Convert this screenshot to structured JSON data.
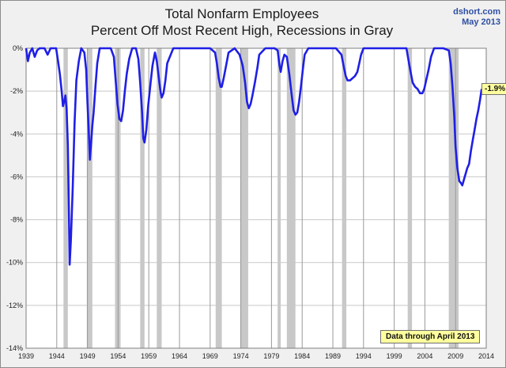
{
  "chart_data": {
    "type": "line",
    "title": "Total Nonfarm Employees",
    "subtitle": "Percent Off Most Recent High, Recessions in Gray",
    "source": "dshort.com",
    "date": "May 2013",
    "annotation": "Data through April 2013",
    "last_value_label": "-1.9%",
    "xlabel": "",
    "ylabel": "",
    "x_ticks": [
      "1939",
      "1944",
      "1949",
      "1954",
      "1959",
      "1964",
      "1969",
      "1974",
      "1979",
      "1984",
      "1989",
      "1994",
      "1999",
      "2004",
      "2009",
      "2014"
    ],
    "y_ticks": [
      "0%",
      "-2%",
      "-4%",
      "-6%",
      "-8%",
      "-10%",
      "-12%",
      "-14%"
    ],
    "xlim": [
      1939,
      2014
    ],
    "ylim": [
      -14,
      0
    ],
    "grid": true,
    "line_color": "#1f1fe6",
    "recession_color": "#c8c8c8",
    "recessions": [
      [
        1945.1,
        1945.8
      ],
      [
        1948.9,
        1949.8
      ],
      [
        1953.5,
        1954.4
      ],
      [
        1957.6,
        1958.3
      ],
      [
        1960.3,
        1961.1
      ],
      [
        1969.9,
        1970.9
      ],
      [
        1973.9,
        1975.2
      ],
      [
        1980.0,
        1980.5
      ],
      [
        1981.5,
        1982.9
      ],
      [
        1990.5,
        1991.2
      ],
      [
        2001.2,
        2001.9
      ],
      [
        2007.9,
        2009.5
      ]
    ],
    "series": [
      {
        "x": [
          1939.0,
          1939.3,
          1939.6,
          1940.0,
          1940.4,
          1940.8,
          1941.2,
          1942.0,
          1942.5,
          1943.0,
          1943.5,
          1943.9,
          1944.2,
          1944.5,
          1944.8,
          1945.0,
          1945.2,
          1945.4,
          1945.6,
          1945.8,
          1945.95,
          1946.1,
          1946.3,
          1946.6,
          1946.9,
          1947.2,
          1947.6,
          1948.0,
          1948.5,
          1948.8,
          1949.0,
          1949.2,
          1949.4,
          1949.6,
          1949.8,
          1950.0,
          1950.3,
          1950.6,
          1951.0,
          1951.6,
          1952.2,
          1952.8,
          1953.3,
          1953.6,
          1953.9,
          1954.2,
          1954.5,
          1954.8,
          1955.1,
          1955.4,
          1955.8,
          1956.3,
          1956.9,
          1957.3,
          1957.6,
          1957.9,
          1958.1,
          1958.3,
          1958.6,
          1958.9,
          1959.3,
          1959.6,
          1960.0,
          1960.3,
          1960.6,
          1960.9,
          1961.1,
          1961.4,
          1961.7,
          1962.0,
          1963.0,
          1965.0,
          1967.0,
          1969.0,
          1969.8,
          1970.1,
          1970.4,
          1970.7,
          1970.9,
          1971.2,
          1971.6,
          1972.0,
          1973.0,
          1973.8,
          1974.3,
          1974.7,
          1975.0,
          1975.3,
          1975.6,
          1975.9,
          1976.3,
          1976.7,
          1977.0,
          1978.0,
          1979.5,
          1980.0,
          1980.3,
          1980.5,
          1980.8,
          1981.1,
          1981.5,
          1981.9,
          1982.3,
          1982.6,
          1982.9,
          1983.2,
          1983.5,
          1983.8,
          1984.1,
          1984.4,
          1985.0,
          1987.0,
          1989.5,
          1990.4,
          1990.8,
          1991.1,
          1991.4,
          1991.8,
          1992.2,
          1992.6,
          1993.0,
          1993.3,
          1993.6,
          1994.0,
          1996.0,
          1998.0,
          2000.0,
          2001.0,
          2001.3,
          2001.6,
          2002.0,
          2002.4,
          2002.8,
          2003.2,
          2003.6,
          2003.9,
          2004.2,
          2004.6,
          2005.0,
          2005.5,
          2006.0,
          2007.0,
          2007.9,
          2008.2,
          2008.5,
          2008.8,
          2009.0,
          2009.3,
          2009.6,
          2009.9,
          2010.1,
          2010.3,
          2010.5,
          2010.7,
          2010.9,
          2011.2,
          2011.5,
          2011.8,
          2012.1,
          2012.4,
          2012.7,
          2013.0,
          2013.25
        ],
        "y": [
          0,
          -0.6,
          -0.2,
          0,
          -0.4,
          -0.1,
          0,
          0,
          -0.3,
          0,
          0,
          0,
          -0.6,
          -1.2,
          -2.0,
          -2.7,
          -2.5,
          -2.2,
          -2.8,
          -4.5,
          -7.0,
          -10.1,
          -9.0,
          -6.5,
          -3.5,
          -1.5,
          -0.6,
          0,
          -0.2,
          -1.0,
          -2.5,
          -3.8,
          -5.2,
          -4.4,
          -3.6,
          -3.0,
          -1.8,
          -0.7,
          0,
          0,
          0,
          0,
          -0.4,
          -1.5,
          -2.6,
          -3.3,
          -3.4,
          -2.9,
          -2.0,
          -1.2,
          -0.5,
          0,
          0,
          -0.5,
          -1.6,
          -3.0,
          -4.2,
          -4.4,
          -3.8,
          -2.7,
          -1.6,
          -0.8,
          -0.2,
          -0.6,
          -1.3,
          -2.0,
          -2.3,
          -2.1,
          -1.5,
          -0.7,
          0,
          0,
          0,
          0,
          -0.2,
          -0.7,
          -1.4,
          -1.8,
          -1.8,
          -1.4,
          -0.8,
          -0.2,
          0,
          -0.3,
          -0.8,
          -1.6,
          -2.5,
          -2.8,
          -2.6,
          -2.2,
          -1.6,
          -0.9,
          -0.3,
          0,
          0,
          -0.1,
          -0.8,
          -1.1,
          -0.6,
          -0.3,
          -0.4,
          -1.2,
          -2.2,
          -2.9,
          -3.1,
          -3.0,
          -2.5,
          -1.8,
          -1.0,
          -0.3,
          0,
          0,
          0,
          -0.3,
          -0.9,
          -1.3,
          -1.5,
          -1.5,
          -1.4,
          -1.3,
          -1.1,
          -0.7,
          -0.3,
          0,
          0,
          0,
          0,
          0,
          -0.5,
          -1.0,
          -1.6,
          -1.8,
          -1.9,
          -2.1,
          -2.1,
          -1.9,
          -1.5,
          -1.0,
          -0.4,
          0,
          0,
          0,
          -0.1,
          -0.7,
          -1.8,
          -3.2,
          -4.6,
          -5.6,
          -6.2,
          -6.3,
          -6.4,
          -6.2,
          -6.0,
          -5.8,
          -5.6,
          -5.4,
          -4.8,
          -4.3,
          -3.8,
          -3.3,
          -2.9,
          -2.4,
          -1.9
        ]
      }
    ]
  }
}
